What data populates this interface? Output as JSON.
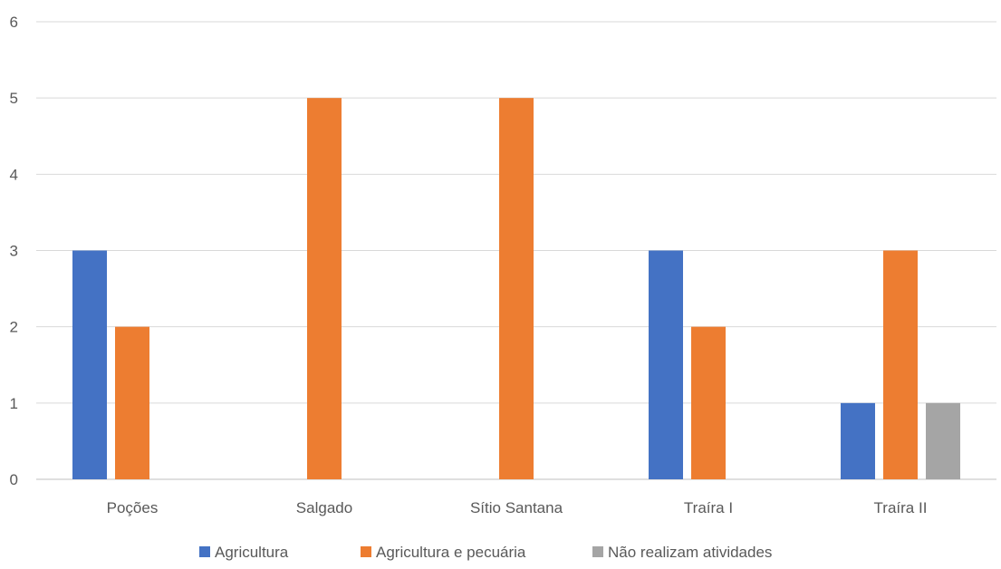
{
  "chart_data": {
    "type": "bar",
    "categories": [
      "Poções",
      "Salgado",
      "Sítio Santana",
      "Traíra I",
      "Traíra II"
    ],
    "series": [
      {
        "name": "Agricultura",
        "color": "#4472C4",
        "values": [
          3,
          0,
          0,
          3,
          1
        ]
      },
      {
        "name": "Agricultura e pecuária",
        "color": "#ED7D31",
        "values": [
          2,
          5,
          5,
          2,
          3
        ]
      },
      {
        "name": "Não realizam atividades",
        "color": "#A5A5A5",
        "values": [
          0,
          0,
          0,
          0,
          1
        ]
      }
    ],
    "ylim": [
      0,
      6
    ],
    "yticks": [
      0,
      1,
      2,
      3,
      4,
      5,
      6
    ],
    "grid": true,
    "legend_position": "bottom"
  }
}
